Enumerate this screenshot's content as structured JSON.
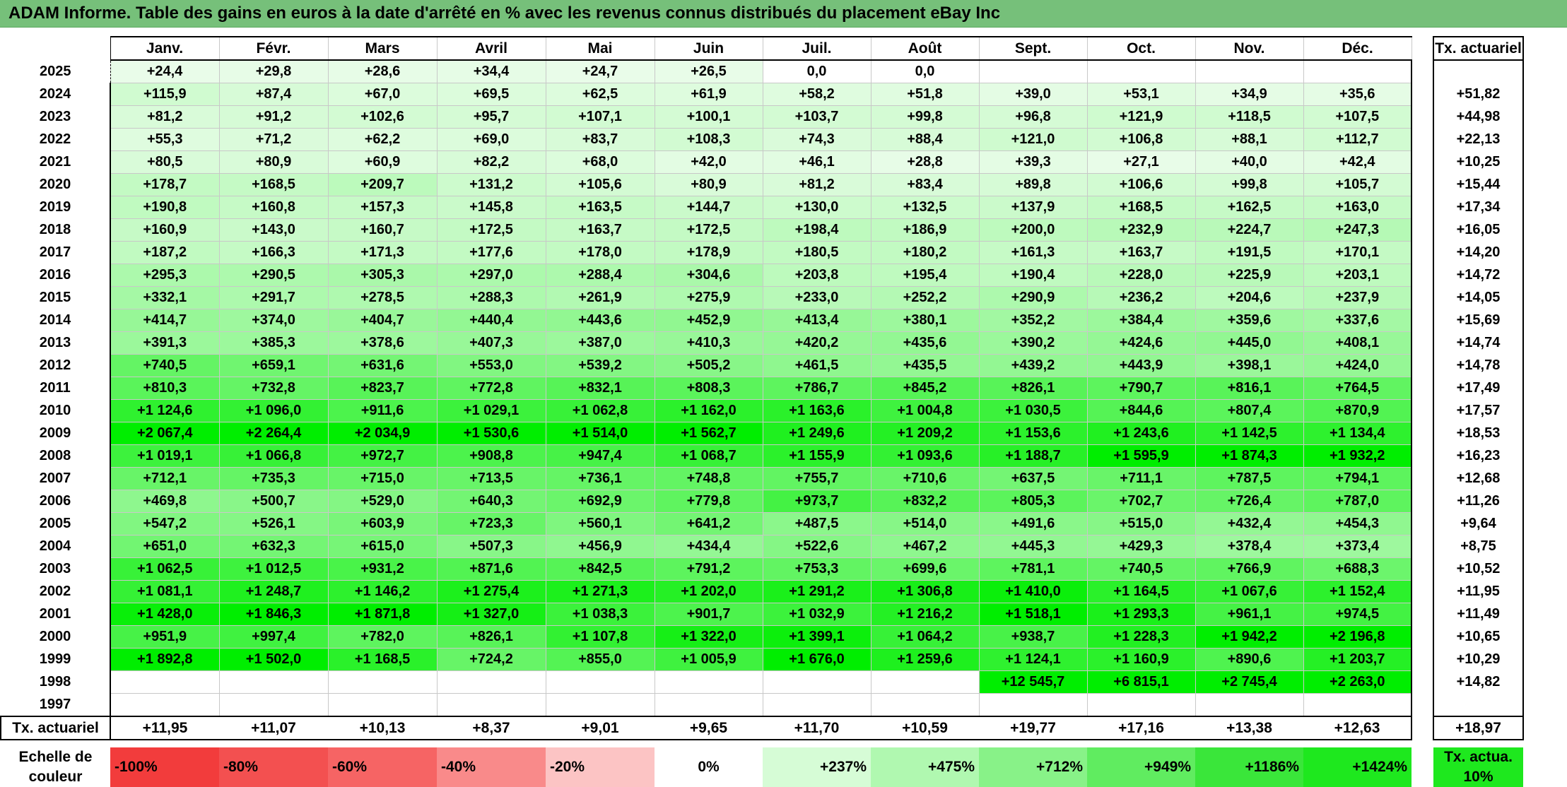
{
  "title": "ADAM Informe. Table des gains en euros à la date d'arrêté en % avec les revenus connus distribués du placement eBay Inc",
  "months": [
    "Janv.",
    "Févr.",
    "Mars",
    "Avril",
    "Mai",
    "Juin",
    "Juil.",
    "Août",
    "Sept.",
    "Oct.",
    "Nov.",
    "Déc."
  ],
  "actuarial_header": "Tx. actuariel",
  "rows": [
    {
      "year": "2025",
      "values": [
        "+24,4",
        "+29,8",
        "+28,6",
        "+34,4",
        "+24,7",
        "+26,5",
        "0,0",
        "0,0",
        "",
        "",
        "",
        ""
      ],
      "rate": ""
    },
    {
      "year": "2024",
      "values": [
        "+115,9",
        "+87,4",
        "+67,0",
        "+69,5",
        "+62,5",
        "+61,9",
        "+58,2",
        "+51,8",
        "+39,0",
        "+53,1",
        "+34,9",
        "+35,6"
      ],
      "rate": "+51,82"
    },
    {
      "year": "2023",
      "values": [
        "+81,2",
        "+91,2",
        "+102,6",
        "+95,7",
        "+107,1",
        "+100,1",
        "+103,7",
        "+99,8",
        "+96,8",
        "+121,9",
        "+118,5",
        "+107,5"
      ],
      "rate": "+44,98"
    },
    {
      "year": "2022",
      "values": [
        "+55,3",
        "+71,2",
        "+62,2",
        "+69,0",
        "+83,7",
        "+108,3",
        "+74,3",
        "+88,4",
        "+121,0",
        "+106,8",
        "+88,1",
        "+112,7"
      ],
      "rate": "+22,13"
    },
    {
      "year": "2021",
      "values": [
        "+80,5",
        "+80,9",
        "+60,9",
        "+82,2",
        "+68,0",
        "+42,0",
        "+46,1",
        "+28,8",
        "+39,3",
        "+27,1",
        "+40,0",
        "+42,4"
      ],
      "rate": "+10,25"
    },
    {
      "year": "2020",
      "values": [
        "+178,7",
        "+168,5",
        "+209,7",
        "+131,2",
        "+105,6",
        "+80,9",
        "+81,2",
        "+83,4",
        "+89,8",
        "+106,6",
        "+99,8",
        "+105,7"
      ],
      "rate": "+15,44"
    },
    {
      "year": "2019",
      "values": [
        "+190,8",
        "+160,8",
        "+157,3",
        "+145,8",
        "+163,5",
        "+144,7",
        "+130,0",
        "+132,5",
        "+137,9",
        "+168,5",
        "+162,5",
        "+163,0"
      ],
      "rate": "+17,34"
    },
    {
      "year": "2018",
      "values": [
        "+160,9",
        "+143,0",
        "+160,7",
        "+172,5",
        "+163,7",
        "+172,5",
        "+198,4",
        "+186,9",
        "+200,0",
        "+232,9",
        "+224,7",
        "+247,3"
      ],
      "rate": "+16,05"
    },
    {
      "year": "2017",
      "values": [
        "+187,2",
        "+166,3",
        "+171,3",
        "+177,6",
        "+178,0",
        "+178,9",
        "+180,5",
        "+180,2",
        "+161,3",
        "+163,7",
        "+191,5",
        "+170,1"
      ],
      "rate": "+14,20"
    },
    {
      "year": "2016",
      "values": [
        "+295,3",
        "+290,5",
        "+305,3",
        "+297,0",
        "+288,4",
        "+304,6",
        "+203,8",
        "+195,4",
        "+190,4",
        "+228,0",
        "+225,9",
        "+203,1"
      ],
      "rate": "+14,72"
    },
    {
      "year": "2015",
      "values": [
        "+332,1",
        "+291,7",
        "+278,5",
        "+288,3",
        "+261,9",
        "+275,9",
        "+233,0",
        "+252,2",
        "+290,9",
        "+236,2",
        "+204,6",
        "+237,9"
      ],
      "rate": "+14,05"
    },
    {
      "year": "2014",
      "values": [
        "+414,7",
        "+374,0",
        "+404,7",
        "+440,4",
        "+443,6",
        "+452,9",
        "+413,4",
        "+380,1",
        "+352,2",
        "+384,4",
        "+359,6",
        "+337,6"
      ],
      "rate": "+15,69"
    },
    {
      "year": "2013",
      "values": [
        "+391,3",
        "+385,3",
        "+378,6",
        "+407,3",
        "+387,0",
        "+410,3",
        "+420,2",
        "+435,6",
        "+390,2",
        "+424,6",
        "+445,0",
        "+408,1"
      ],
      "rate": "+14,74"
    },
    {
      "year": "2012",
      "values": [
        "+740,5",
        "+659,1",
        "+631,6",
        "+553,0",
        "+539,2",
        "+505,2",
        "+461,5",
        "+435,5",
        "+439,2",
        "+443,9",
        "+398,1",
        "+424,0"
      ],
      "rate": "+14,78"
    },
    {
      "year": "2011",
      "values": [
        "+810,3",
        "+732,8",
        "+823,7",
        "+772,8",
        "+832,1",
        "+808,3",
        "+786,7",
        "+845,2",
        "+826,1",
        "+790,7",
        "+816,1",
        "+764,5"
      ],
      "rate": "+17,49"
    },
    {
      "year": "2010",
      "values": [
        "+1 124,6",
        "+1 096,0",
        "+911,6",
        "+1 029,1",
        "+1 062,8",
        "+1 162,0",
        "+1 163,6",
        "+1 004,8",
        "+1 030,5",
        "+844,6",
        "+807,4",
        "+870,9"
      ],
      "rate": "+17,57"
    },
    {
      "year": "2009",
      "values": [
        "+2 067,4",
        "+2 264,4",
        "+2 034,9",
        "+1 530,6",
        "+1 514,0",
        "+1 562,7",
        "+1 249,6",
        "+1 209,2",
        "+1 153,6",
        "+1 243,6",
        "+1 142,5",
        "+1 134,4"
      ],
      "rate": "+18,53"
    },
    {
      "year": "2008",
      "values": [
        "+1 019,1",
        "+1 066,8",
        "+972,7",
        "+908,8",
        "+947,4",
        "+1 068,7",
        "+1 155,9",
        "+1 093,6",
        "+1 188,7",
        "+1 595,9",
        "+1 874,3",
        "+1 932,2"
      ],
      "rate": "+16,23"
    },
    {
      "year": "2007",
      "values": [
        "+712,1",
        "+735,3",
        "+715,0",
        "+713,5",
        "+736,1",
        "+748,8",
        "+755,7",
        "+710,6",
        "+637,5",
        "+711,1",
        "+787,5",
        "+794,1"
      ],
      "rate": "+12,68"
    },
    {
      "year": "2006",
      "values": [
        "+469,8",
        "+500,7",
        "+529,0",
        "+640,3",
        "+692,9",
        "+779,8",
        "+973,7",
        "+832,2",
        "+805,3",
        "+702,7",
        "+726,4",
        "+787,0"
      ],
      "rate": "+11,26"
    },
    {
      "year": "2005",
      "values": [
        "+547,2",
        "+526,1",
        "+603,9",
        "+723,3",
        "+560,1",
        "+641,2",
        "+487,5",
        "+514,0",
        "+491,6",
        "+515,0",
        "+432,4",
        "+454,3"
      ],
      "rate": "+9,64"
    },
    {
      "year": "2004",
      "values": [
        "+651,0",
        "+632,3",
        "+615,0",
        "+507,3",
        "+456,9",
        "+434,4",
        "+522,6",
        "+467,2",
        "+445,3",
        "+429,3",
        "+378,4",
        "+373,4"
      ],
      "rate": "+8,75"
    },
    {
      "year": "2003",
      "values": [
        "+1 062,5",
        "+1 012,5",
        "+931,2",
        "+871,6",
        "+842,5",
        "+791,2",
        "+753,3",
        "+699,6",
        "+781,1",
        "+740,5",
        "+766,9",
        "+688,3"
      ],
      "rate": "+10,52"
    },
    {
      "year": "2002",
      "values": [
        "+1 081,1",
        "+1 248,7",
        "+1 146,2",
        "+1 275,4",
        "+1 271,3",
        "+1 202,0",
        "+1 291,2",
        "+1 306,8",
        "+1 410,0",
        "+1 164,5",
        "+1 067,6",
        "+1 152,4"
      ],
      "rate": "+11,95"
    },
    {
      "year": "2001",
      "values": [
        "+1 428,0",
        "+1 846,3",
        "+1 871,8",
        "+1 327,0",
        "+1 038,3",
        "+901,7",
        "+1 032,9",
        "+1 216,2",
        "+1 518,1",
        "+1 293,3",
        "+961,1",
        "+974,5"
      ],
      "rate": "+11,49"
    },
    {
      "year": "2000",
      "values": [
        "+951,9",
        "+997,4",
        "+782,0",
        "+826,1",
        "+1 107,8",
        "+1 322,0",
        "+1 399,1",
        "+1 064,2",
        "+938,7",
        "+1 228,3",
        "+1 942,2",
        "+2 196,8"
      ],
      "rate": "+10,65"
    },
    {
      "year": "1999",
      "values": [
        "+1 892,8",
        "+1 502,0",
        "+1 168,5",
        "+724,2",
        "+855,0",
        "+1 005,9",
        "+1 676,0",
        "+1 259,6",
        "+1 124,1",
        "+1 160,9",
        "+890,6",
        "+1 203,7"
      ],
      "rate": "+10,29"
    },
    {
      "year": "1998",
      "values": [
        "",
        "",
        "",
        "",
        "",
        "",
        "",
        "",
        "+12 545,7",
        "+6 815,1",
        "+2 745,4",
        "+2 263,0"
      ],
      "rate": "+14,82"
    },
    {
      "year": "1997",
      "values": [
        "",
        "",
        "",
        "",
        "",
        "",
        "",
        "",
        "",
        "",
        "",
        ""
      ],
      "rate": ""
    }
  ],
  "summary": {
    "label": "Tx. actuariel",
    "values": [
      "+11,95",
      "+11,07",
      "+10,13",
      "+8,37",
      "+9,01",
      "+9,65",
      "+11,70",
      "+10,59",
      "+19,77",
      "+17,16",
      "+13,38",
      "+12,63"
    ],
    "total": "+18,97"
  },
  "scale": {
    "label": "Echelle de couleur",
    "items": [
      {
        "text": "-100%",
        "color": "#f23c3c",
        "align": "left"
      },
      {
        "text": "-80%",
        "color": "#f35050",
        "align": "left"
      },
      {
        "text": "-60%",
        "color": "#f66464",
        "align": "left"
      },
      {
        "text": "-40%",
        "color": "#f98a8a",
        "align": "left"
      },
      {
        "text": "-20%",
        "color": "#fcc4c4",
        "align": "left"
      },
      {
        "text": "0%",
        "color": "#ffffff",
        "align": "center"
      },
      {
        "text": "+237%",
        "color": "#d6fcd6",
        "align": "right"
      },
      {
        "text": "+475%",
        "color": "#b0f8b0",
        "align": "right"
      },
      {
        "text": "+712%",
        "color": "#88f288",
        "align": "right"
      },
      {
        "text": "+949%",
        "color": "#60ec60",
        "align": "right"
      },
      {
        "text": "+1186%",
        "color": "#3ae63a",
        "align": "right"
      },
      {
        "text": "+1424%",
        "color": "#1ee81e",
        "align": "right"
      }
    ],
    "actuarial": {
      "text": "Tx. actua. 10%",
      "color": "#1ee81e"
    }
  },
  "colors": {
    "title_bg": "#76c07a",
    "positive_max": "#00ee00",
    "border": "#000000"
  }
}
